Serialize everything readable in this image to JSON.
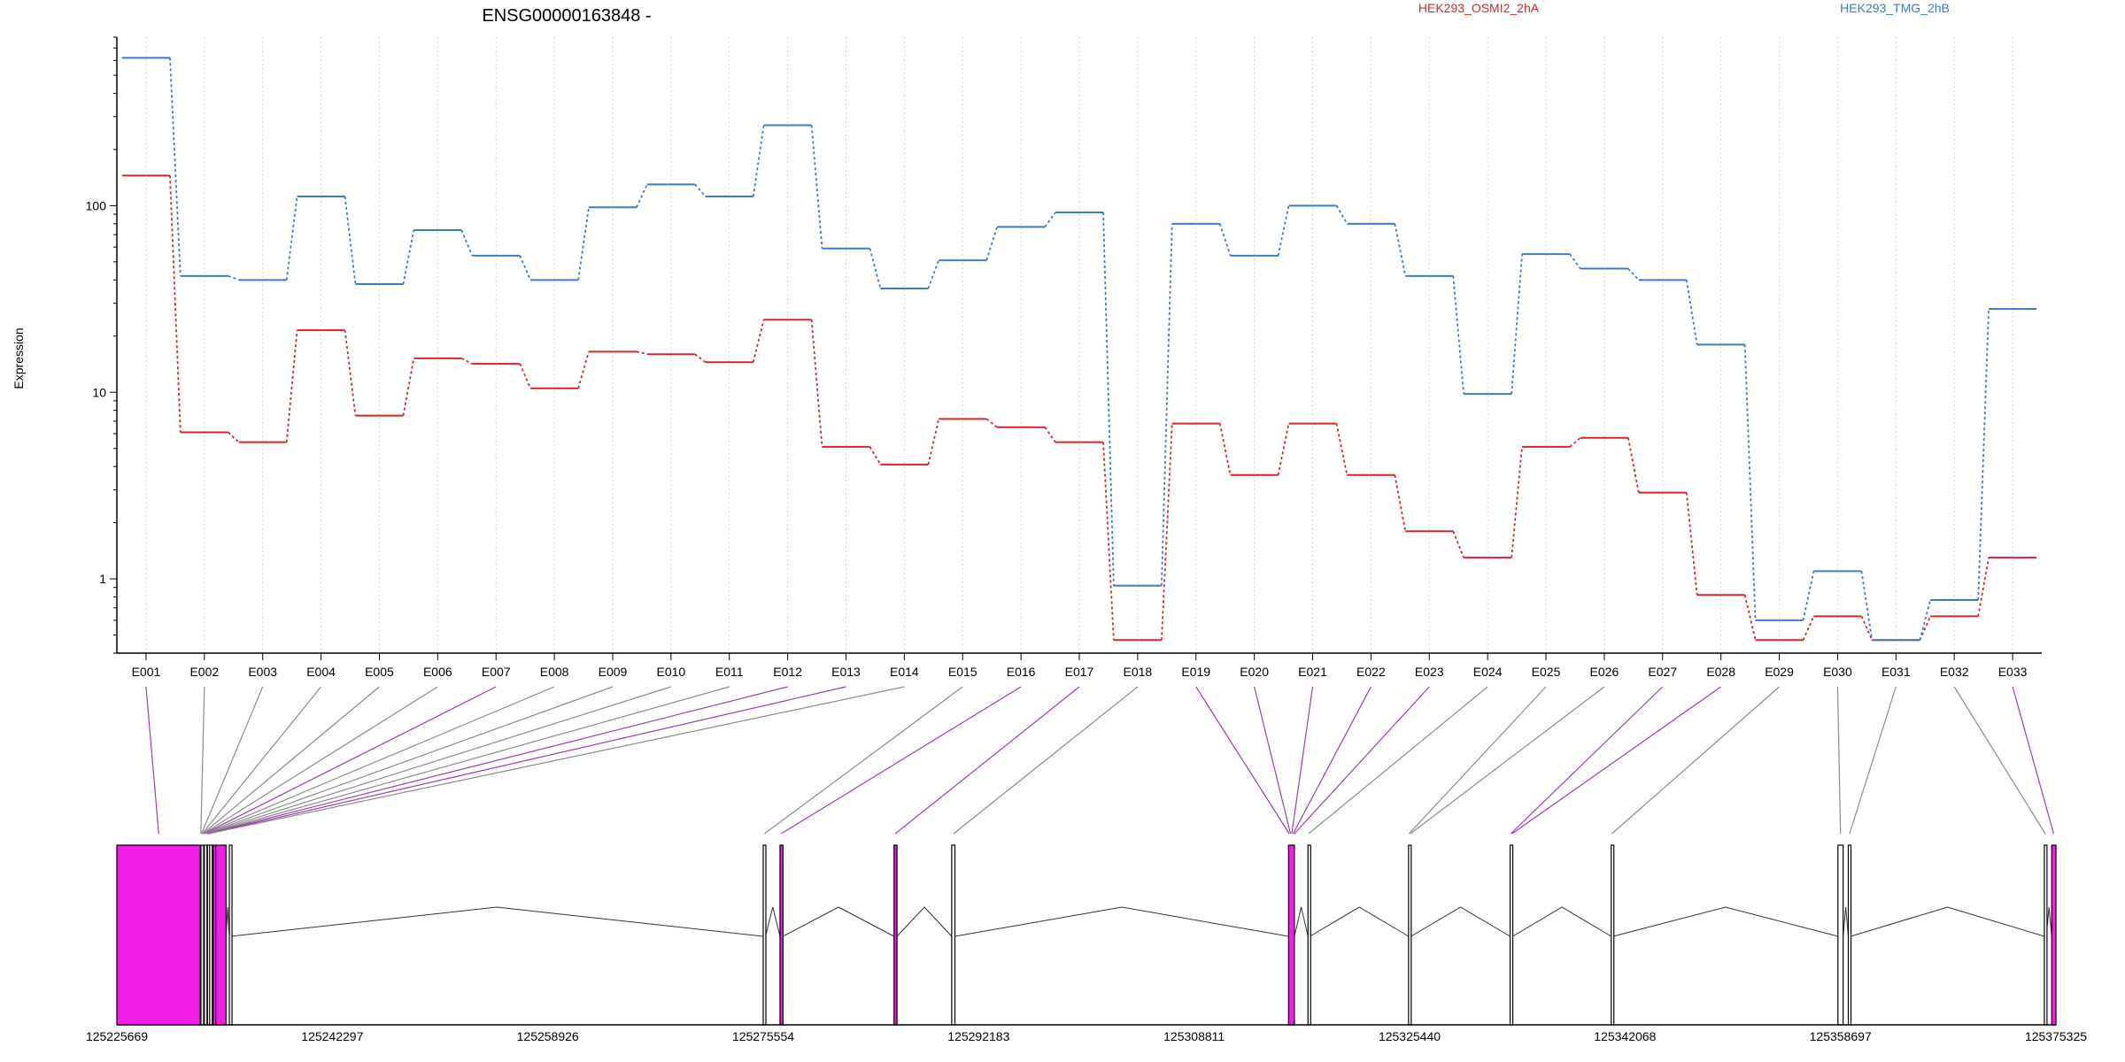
{
  "chart_data": {
    "type": "line",
    "title": "ENSG00000163848 -",
    "ylabel": "Expression",
    "yscale": "log",
    "ylim": [
      0.4,
      800
    ],
    "yticks": [
      {
        "value": 1,
        "label": "1"
      },
      {
        "value": 10,
        "label": "10"
      },
      {
        "value": 100,
        "label": "100"
      }
    ],
    "grid": "vertical dotted lines at each exon",
    "legend_position": "top-right",
    "categories": [
      "E001",
      "E002",
      "E003",
      "E004",
      "E005",
      "E006",
      "E007",
      "E008",
      "E009",
      "E010",
      "E011",
      "E012",
      "E013",
      "E014",
      "E015",
      "E016",
      "E017",
      "E018",
      "E019",
      "E020",
      "E021",
      "E022",
      "E023",
      "E024",
      "E025",
      "E026",
      "E027",
      "E028",
      "E029",
      "E030",
      "E031",
      "E032",
      "E033"
    ],
    "series": [
      {
        "name": "HEK293_OSMI2_2hA",
        "color": "#d62728",
        "values": [
          145,
          6.1,
          5.4,
          21.5,
          7.5,
          15.2,
          14.2,
          10.5,
          16.5,
          16.0,
          14.5,
          24.5,
          5.1,
          4.1,
          7.2,
          6.5,
          5.4,
          0.47,
          6.8,
          3.6,
          6.8,
          3.6,
          1.8,
          1.3,
          5.1,
          5.7,
          2.9,
          0.82,
          0.47,
          0.63,
          0.47,
          0.63,
          1.3
        ]
      },
      {
        "name": "HEK293_TMG_2hB",
        "color": "#3b7dc4",
        "values": [
          620,
          42,
          40,
          112,
          38,
          74,
          54,
          40,
          98,
          130,
          112,
          270,
          59,
          36,
          51,
          77,
          92,
          0.92,
          80,
          54,
          100,
          80,
          42,
          9.8,
          55,
          46,
          40,
          18,
          0.6,
          1.1,
          0.47,
          0.77,
          28
        ]
      }
    ],
    "gene_model": {
      "genomic_ticks": [
        "125225669",
        "125242297",
        "125258926",
        "125275554",
        "125292183",
        "125308811",
        "125325440",
        "125342068",
        "125358697",
        "125375325"
      ],
      "genomic_start": 125225669,
      "genomic_end": 125375325,
      "exons": [
        {
          "start": 125225669,
          "end": 125232100,
          "highlight": true
        },
        {
          "start": 125232160,
          "end": 125232230,
          "highlight": false
        },
        {
          "start": 125232420,
          "end": 125232490,
          "highlight": false
        },
        {
          "start": 125232660,
          "end": 125232740,
          "highlight": false
        },
        {
          "start": 125232830,
          "end": 125232900,
          "highlight": false
        },
        {
          "start": 125233100,
          "end": 125233200,
          "highlight": true
        },
        {
          "start": 125233300,
          "end": 125234100,
          "highlight": true
        },
        {
          "start": 125234350,
          "end": 125234430,
          "highlight": false
        },
        {
          "start": 125275554,
          "end": 125275730,
          "highlight": false
        },
        {
          "start": 125276850,
          "end": 125277080,
          "highlight": true
        },
        {
          "start": 125285650,
          "end": 125285880,
          "highlight": true
        },
        {
          "start": 125290100,
          "end": 125290350,
          "highlight": false
        },
        {
          "start": 125316100,
          "end": 125316550,
          "highlight": true
        },
        {
          "start": 125317600,
          "end": 125317750,
          "highlight": false
        },
        {
          "start": 125325360,
          "end": 125325550,
          "highlight": false
        },
        {
          "start": 125333200,
          "end": 125333400,
          "highlight": false
        },
        {
          "start": 125341000,
          "end": 125341150,
          "highlight": false
        },
        {
          "start": 125358500,
          "end": 125358900,
          "highlight": false
        },
        {
          "start": 125359300,
          "end": 125359480,
          "highlight": false
        },
        {
          "start": 125374430,
          "end": 125374580,
          "highlight": false
        },
        {
          "start": 125375000,
          "end": 125375325,
          "highlight": true
        }
      ],
      "exon_connections": [
        {
          "exon": "E001",
          "pos": 125228900,
          "highlight": true
        },
        {
          "exon": "E002",
          "pos": 125232150,
          "highlight": false
        },
        {
          "exon": "E003",
          "pos": 125232200,
          "highlight": false
        },
        {
          "exon": "E004",
          "pos": 125232250,
          "highlight": false
        },
        {
          "exon": "E005",
          "pos": 125232300,
          "highlight": false
        },
        {
          "exon": "E006",
          "pos": 125232350,
          "highlight": false
        },
        {
          "exon": "E007",
          "pos": 125232400,
          "highlight": true
        },
        {
          "exon": "E008",
          "pos": 125232450,
          "highlight": false
        },
        {
          "exon": "E009",
          "pos": 125232500,
          "highlight": false
        },
        {
          "exon": "E010",
          "pos": 125232550,
          "highlight": false
        },
        {
          "exon": "E011",
          "pos": 125232600,
          "highlight": false
        },
        {
          "exon": "E012",
          "pos": 125232650,
          "highlight": true
        },
        {
          "exon": "E013",
          "pos": 125232700,
          "highlight": true
        },
        {
          "exon": "E014",
          "pos": 125232750,
          "highlight": false
        },
        {
          "exon": "E015",
          "pos": 125275650,
          "highlight": false
        },
        {
          "exon": "E016",
          "pos": 125276950,
          "highlight": true
        },
        {
          "exon": "E017",
          "pos": 125285750,
          "highlight": true
        },
        {
          "exon": "E018",
          "pos": 125290250,
          "highlight": false
        },
        {
          "exon": "E019",
          "pos": 125316150,
          "highlight": true
        },
        {
          "exon": "E020",
          "pos": 125316250,
          "highlight": true
        },
        {
          "exon": "E021",
          "pos": 125316350,
          "highlight": true
        },
        {
          "exon": "E022",
          "pos": 125316450,
          "highlight": true
        },
        {
          "exon": "E023",
          "pos": 125316550,
          "highlight": true
        },
        {
          "exon": "E024",
          "pos": 125317650,
          "highlight": false
        },
        {
          "exon": "E025",
          "pos": 125325400,
          "highlight": false
        },
        {
          "exon": "E026",
          "pos": 125325500,
          "highlight": false
        },
        {
          "exon": "E027",
          "pos": 125333250,
          "highlight": true
        },
        {
          "exon": "E028",
          "pos": 125333350,
          "highlight": true
        },
        {
          "exon": "E029",
          "pos": 125341050,
          "highlight": false
        },
        {
          "exon": "E030",
          "pos": 125358700,
          "highlight": false
        },
        {
          "exon": "E031",
          "pos": 125359400,
          "highlight": false
        },
        {
          "exon": "E032",
          "pos": 125374500,
          "highlight": false
        },
        {
          "exon": "E033",
          "pos": 125375150,
          "highlight": true
        }
      ]
    }
  }
}
